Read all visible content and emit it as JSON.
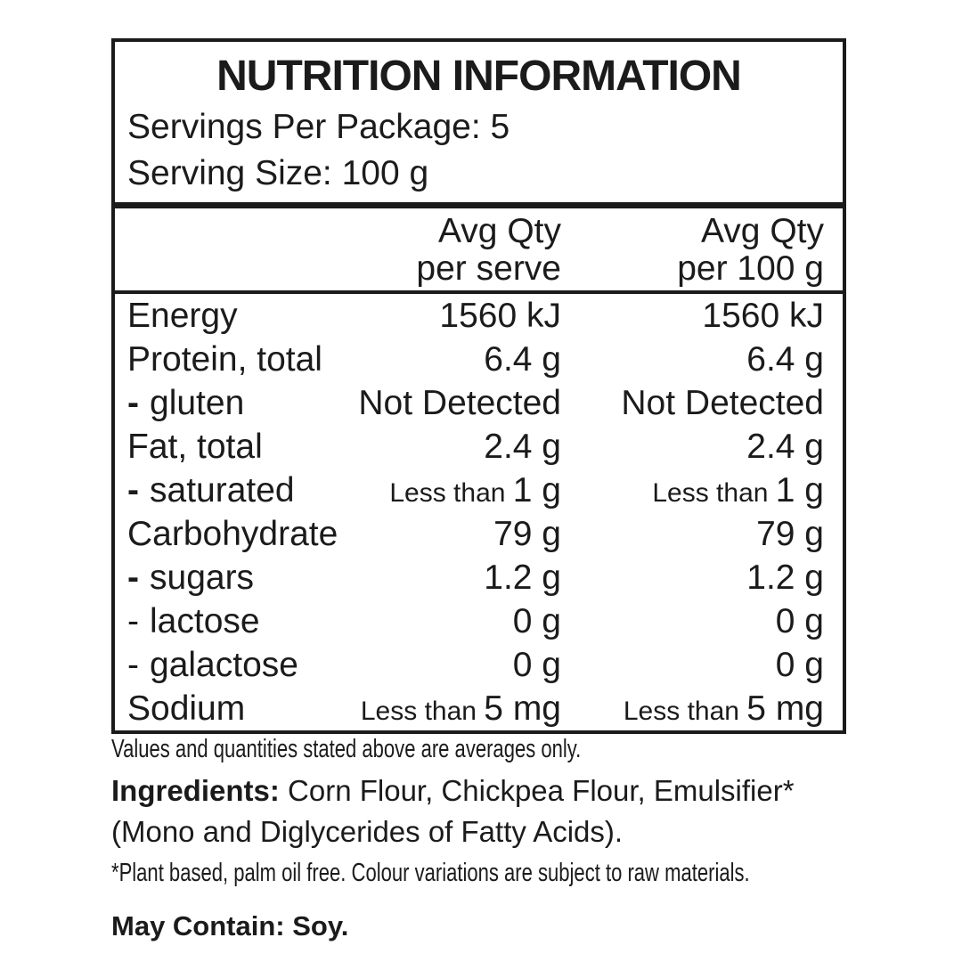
{
  "colors": {
    "text": "#1b1b1b",
    "border": "#1b1b1b",
    "background": "#ffffff"
  },
  "header": {
    "title": "NUTRITION INFORMATION",
    "servings_per_package": "Servings Per Package: 5",
    "serving_size": "Serving Size: 100 g"
  },
  "columns": {
    "per_serve": {
      "line1": "Avg Qty",
      "line2": "per serve"
    },
    "per_100g": {
      "line1": "Avg Qty",
      "line2": "per 100 g"
    }
  },
  "table": {
    "rows": [
      {
        "label": "Energy",
        "dash": null,
        "per_serve": {
          "amount": "1560 kJ"
        },
        "per_100g": {
          "amount": "1560 kJ"
        }
      },
      {
        "label": "Protein, total",
        "dash": null,
        "per_serve": {
          "amount": "6.4 g"
        },
        "per_100g": {
          "amount": "6.4 g"
        }
      },
      {
        "label": "gluten",
        "dash": "bold",
        "per_serve": {
          "amount": "Not Detected"
        },
        "per_100g": {
          "amount": "Not Detected"
        }
      },
      {
        "label": "Fat, total",
        "dash": null,
        "per_serve": {
          "amount": "2.4 g"
        },
        "per_100g": {
          "amount": "2.4 g"
        }
      },
      {
        "label": "saturated",
        "dash": "bold",
        "per_serve": {
          "prefix": "Less than",
          "amount": "1 g"
        },
        "per_100g": {
          "prefix": "Less than",
          "amount": "1 g"
        }
      },
      {
        "label": "Carbohydrate",
        "dash": null,
        "per_serve": {
          "amount": "79 g"
        },
        "per_100g": {
          "amount": "79 g"
        }
      },
      {
        "label": "sugars",
        "dash": "bold",
        "per_serve": {
          "amount": "1.2 g"
        },
        "per_100g": {
          "amount": "1.2 g"
        }
      },
      {
        "label": "lactose",
        "dash": "light",
        "per_serve": {
          "amount": "0 g"
        },
        "per_100g": {
          "amount": "0 g"
        }
      },
      {
        "label": "galactose",
        "dash": "light",
        "per_serve": {
          "amount": "0 g"
        },
        "per_100g": {
          "amount": "0 g"
        }
      },
      {
        "label": "Sodium",
        "dash": null,
        "per_serve": {
          "prefix": "Less than",
          "amount": "5 mg"
        },
        "per_100g": {
          "prefix": "Less than",
          "amount": "5 mg"
        }
      }
    ]
  },
  "footer": {
    "averages_note": "Values and quantities stated above are averages only.",
    "ingredients_label": "Ingredients:",
    "ingredients_line1": " Corn Flour, Chickpea Flour, Emulsifier*",
    "ingredients_line2": "(Mono and Diglycerides of Fatty Acids).",
    "plant_note": "*Plant based, palm oil free. Colour variations are subject to raw materials.",
    "may_contain": "May Contain: Soy."
  }
}
